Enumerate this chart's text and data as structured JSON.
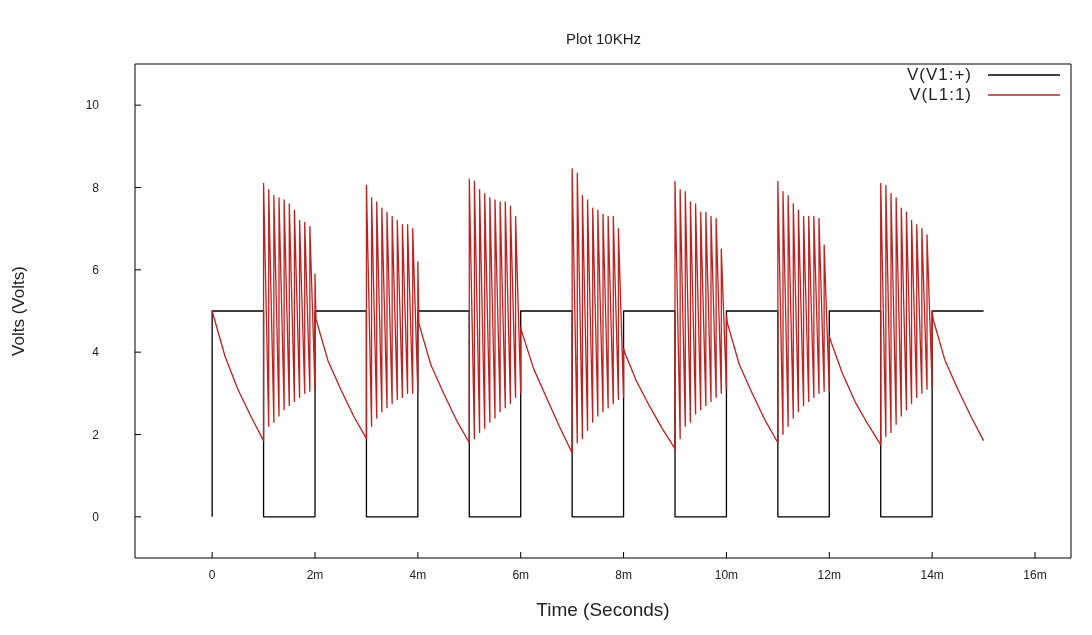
{
  "chart_data": {
    "type": "line",
    "title": "Plot 10KHz",
    "xlabel": "Time (Seconds)",
    "ylabel": "Volts (Volts)",
    "legend": "top right",
    "xlim": [
      -1.5,
      16.7
    ],
    "ylim": [
      -1,
      11
    ],
    "xticks": [
      0,
      {
        "value": 2,
        "label": "2m"
      },
      {
        "value": 4,
        "label": "4m"
      },
      {
        "value": 6,
        "label": "6m"
      },
      {
        "value": 8,
        "label": "8m"
      },
      {
        "value": 10,
        "label": "10m"
      },
      {
        "value": 12,
        "label": "12m"
      },
      {
        "value": 14,
        "label": "14m"
      },
      {
        "value": 16,
        "label": "16m"
      }
    ],
    "yticks": [
      0,
      2,
      4,
      6,
      8,
      10
    ],
    "series": [
      {
        "name": "V(V1:+)",
        "color": "#000000",
        "x": [
          0,
          0,
          1,
          1,
          2,
          2,
          3,
          3,
          4,
          4,
          5,
          5,
          6,
          6,
          7,
          7,
          8,
          8,
          9,
          9,
          10,
          10,
          11,
          11,
          12,
          12,
          13,
          13,
          14,
          14,
          15
        ],
        "values": [
          0,
          5,
          5,
          0,
          0,
          5,
          5,
          0,
          0,
          5,
          5,
          0,
          0,
          5,
          5,
          0,
          0,
          5,
          5,
          0,
          0,
          5,
          5,
          0,
          0,
          5,
          5,
          0,
          0,
          5,
          5
        ]
      },
      {
        "name": "V(L1:1)",
        "color": "#c0201e",
        "x": [
          0,
          0.25,
          0.5,
          0.75,
          1,
          1,
          1.1,
          1.1,
          1.2,
          1.2,
          1.3,
          1.3,
          1.4,
          1.4,
          1.5,
          1.5,
          1.6,
          1.6,
          1.7,
          1.7,
          1.8,
          1.8,
          1.9,
          1.9,
          2,
          2,
          2.02,
          2.25,
          2.5,
          2.75,
          3,
          3,
          3.1,
          3.1,
          3.2,
          3.2,
          3.3,
          3.3,
          3.4,
          3.4,
          3.5,
          3.5,
          3.6,
          3.6,
          3.7,
          3.7,
          3.8,
          3.8,
          3.9,
          3.9,
          4,
          4,
          4.02,
          4.25,
          4.5,
          4.75,
          5,
          5,
          5.1,
          5.1,
          5.2,
          5.2,
          5.3,
          5.3,
          5.4,
          5.4,
          5.5,
          5.5,
          5.6,
          5.6,
          5.7,
          5.7,
          5.8,
          5.8,
          5.9,
          5.9,
          6,
          6,
          6.02,
          6.25,
          6.5,
          6.75,
          7,
          7,
          7.1,
          7.1,
          7.2,
          7.2,
          7.3,
          7.3,
          7.4,
          7.4,
          7.5,
          7.5,
          7.6,
          7.6,
          7.7,
          7.7,
          7.8,
          7.8,
          7.9,
          7.9,
          8,
          8,
          8.02,
          8.25,
          8.5,
          8.75,
          9,
          9,
          9.1,
          9.1,
          9.2,
          9.2,
          9.3,
          9.3,
          9.4,
          9.4,
          9.5,
          9.5,
          9.6,
          9.6,
          9.7,
          9.7,
          9.8,
          9.8,
          9.9,
          9.9,
          10,
          10,
          10.02,
          10.25,
          10.5,
          10.75,
          11,
          11,
          11.1,
          11.1,
          11.2,
          11.2,
          11.3,
          11.3,
          11.4,
          11.4,
          11.5,
          11.5,
          11.6,
          11.6,
          11.7,
          11.7,
          11.8,
          11.8,
          11.9,
          11.9,
          12,
          12,
          12.02,
          12.25,
          12.5,
          12.75,
          13,
          13,
          13.1,
          13.1,
          13.2,
          13.2,
          13.3,
          13.3,
          13.4,
          13.4,
          13.5,
          13.5,
          13.6,
          13.6,
          13.7,
          13.7,
          13.8,
          13.8,
          13.9,
          13.9,
          14,
          14,
          14.02,
          14.25,
          14.5,
          14.75,
          15
        ],
        "values": [
          5,
          3.9,
          3.1,
          2.45,
          1.85,
          8.1,
          2.2,
          7.95,
          2.3,
          7.8,
          2.45,
          7.75,
          2.6,
          7.7,
          2.7,
          7.6,
          2.8,
          7.45,
          2.9,
          7.2,
          3.0,
          7.15,
          3.05,
          7.05,
          3.1,
          5.9,
          4.8,
          3.8,
          3.1,
          2.45,
          1.9,
          8.05,
          2.2,
          7.75,
          2.4,
          7.65,
          2.55,
          7.5,
          2.65,
          7.4,
          2.75,
          7.3,
          2.85,
          7.2,
          2.9,
          7.1,
          3.0,
          7.1,
          3.0,
          7.0,
          3.0,
          6.2,
          4.7,
          3.7,
          3.0,
          2.35,
          1.8,
          8.2,
          1.9,
          8.15,
          2.05,
          7.95,
          2.15,
          7.85,
          2.3,
          7.75,
          2.4,
          7.7,
          2.55,
          7.65,
          2.65,
          7.65,
          2.75,
          7.55,
          2.9,
          7.3,
          3.0,
          4.6,
          4.5,
          3.6,
          2.9,
          2.2,
          1.55,
          8.45,
          1.8,
          8.35,
          1.9,
          7.8,
          2.1,
          7.7,
          2.3,
          7.5,
          2.45,
          7.45,
          2.55,
          7.35,
          2.65,
          7.3,
          2.75,
          7.3,
          2.85,
          7.0,
          2.9,
          4.1,
          4.0,
          3.3,
          2.7,
          2.15,
          1.65,
          8.15,
          1.9,
          7.95,
          2.2,
          7.9,
          2.3,
          7.65,
          2.5,
          7.6,
          2.6,
          7.4,
          2.7,
          7.4,
          2.8,
          7.3,
          2.9,
          7.25,
          3.0,
          6.5,
          3.1,
          4.9,
          4.7,
          3.7,
          3.0,
          2.35,
          1.8,
          8.15,
          2.0,
          7.9,
          2.2,
          7.8,
          2.4,
          7.6,
          2.55,
          7.45,
          2.7,
          7.3,
          2.8,
          7.3,
          2.9,
          7.3,
          3.0,
          7.25,
          3.05,
          6.6,
          3.05,
          4.4,
          4.3,
          3.5,
          2.8,
          2.25,
          1.75,
          8.1,
          1.95,
          8.05,
          2.05,
          7.85,
          2.25,
          7.75,
          2.45,
          7.5,
          2.6,
          7.4,
          2.75,
          7.2,
          2.9,
          7.1,
          3.0,
          7.0,
          3.1,
          6.85,
          3.15,
          5.0,
          4.8,
          3.8,
          3.1,
          2.45,
          1.85
        ]
      }
    ]
  }
}
